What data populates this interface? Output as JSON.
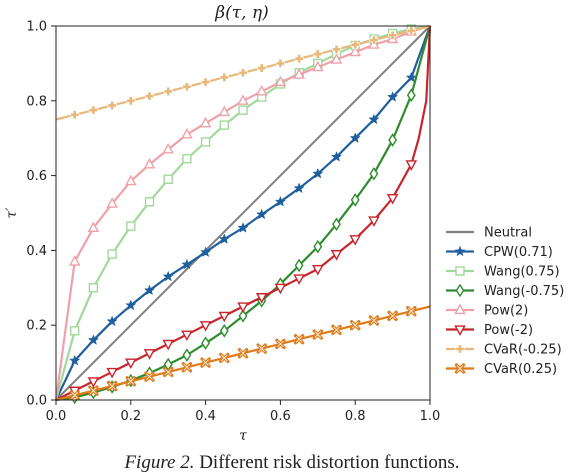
{
  "caption": {
    "head": "Figure 2.",
    "text": "Different risk distortion functions."
  },
  "chart_data": {
    "type": "line",
    "title": "β(τ, η)",
    "xlabel": "τ",
    "ylabel": "τ′",
    "xlim": [
      0,
      1
    ],
    "ylim": [
      0,
      1
    ],
    "xticks": [
      "0.0",
      "0.2",
      "0.4",
      "0.6",
      "0.8",
      "1.0"
    ],
    "yticks": [
      "0.0",
      "0.2",
      "0.4",
      "0.6",
      "0.8",
      "1.0"
    ],
    "grid": false,
    "legend_position": "right",
    "series": [
      {
        "name": "Neutral",
        "color": "#7f7f7f",
        "marker": "none",
        "points": [
          [
            0,
            0
          ],
          [
            1,
            1
          ]
        ]
      },
      {
        "name": "CPW(0.71)",
        "color": "#1f5f9e",
        "marker": "star",
        "points": [
          [
            0,
            0
          ],
          [
            0.05,
            0.105
          ],
          [
            0.1,
            0.16
          ],
          [
            0.15,
            0.21
          ],
          [
            0.2,
            0.253
          ],
          [
            0.25,
            0.293
          ],
          [
            0.3,
            0.33
          ],
          [
            0.35,
            0.362
          ],
          [
            0.4,
            0.395
          ],
          [
            0.45,
            0.43
          ],
          [
            0.5,
            0.46
          ],
          [
            0.55,
            0.496
          ],
          [
            0.6,
            0.53
          ],
          [
            0.65,
            0.566
          ],
          [
            0.7,
            0.605
          ],
          [
            0.75,
            0.65
          ],
          [
            0.8,
            0.7
          ],
          [
            0.85,
            0.75
          ],
          [
            0.9,
            0.81
          ],
          [
            0.95,
            0.862
          ],
          [
            1,
            1
          ]
        ]
      },
      {
        "name": "Wang(0.75)",
        "color": "#a1d99b",
        "marker": "square",
        "points": [
          [
            0,
            0
          ],
          [
            0.05,
            0.185
          ],
          [
            0.1,
            0.3
          ],
          [
            0.15,
            0.39
          ],
          [
            0.2,
            0.465
          ],
          [
            0.25,
            0.53
          ],
          [
            0.3,
            0.59
          ],
          [
            0.35,
            0.645
          ],
          [
            0.4,
            0.69
          ],
          [
            0.45,
            0.735
          ],
          [
            0.5,
            0.775
          ],
          [
            0.55,
            0.81
          ],
          [
            0.6,
            0.845
          ],
          [
            0.65,
            0.875
          ],
          [
            0.7,
            0.9
          ],
          [
            0.75,
            0.925
          ],
          [
            0.8,
            0.948
          ],
          [
            0.85,
            0.965
          ],
          [
            0.9,
            0.98
          ],
          [
            0.95,
            0.992
          ],
          [
            1,
            1
          ]
        ]
      },
      {
        "name": "Wang(-0.75)",
        "color": "#2e8b2e",
        "marker": "diamond",
        "points": [
          [
            0,
            0
          ],
          [
            0.05,
            0.007
          ],
          [
            0.1,
            0.02
          ],
          [
            0.15,
            0.035
          ],
          [
            0.2,
            0.052
          ],
          [
            0.25,
            0.072
          ],
          [
            0.3,
            0.095
          ],
          [
            0.35,
            0.12
          ],
          [
            0.4,
            0.152
          ],
          [
            0.45,
            0.185
          ],
          [
            0.5,
            0.225
          ],
          [
            0.55,
            0.265
          ],
          [
            0.6,
            0.31
          ],
          [
            0.65,
            0.36
          ],
          [
            0.7,
            0.41
          ],
          [
            0.75,
            0.47
          ],
          [
            0.8,
            0.535
          ],
          [
            0.85,
            0.605
          ],
          [
            0.9,
            0.695
          ],
          [
            0.95,
            0.815
          ],
          [
            1,
            1
          ]
        ]
      },
      {
        "name": "Pow(2)",
        "color": "#f0a0a8",
        "marker": "triangle-up",
        "points": [
          [
            0,
            0
          ],
          [
            0.05,
            0.37
          ],
          [
            0.1,
            0.46
          ],
          [
            0.15,
            0.525
          ],
          [
            0.2,
            0.585
          ],
          [
            0.25,
            0.63
          ],
          [
            0.3,
            0.67
          ],
          [
            0.35,
            0.71
          ],
          [
            0.4,
            0.74
          ],
          [
            0.45,
            0.77
          ],
          [
            0.5,
            0.8
          ],
          [
            0.55,
            0.825
          ],
          [
            0.6,
            0.85
          ],
          [
            0.65,
            0.87
          ],
          [
            0.7,
            0.89
          ],
          [
            0.75,
            0.91
          ],
          [
            0.8,
            0.93
          ],
          [
            0.85,
            0.95
          ],
          [
            0.9,
            0.965
          ],
          [
            0.95,
            0.985
          ],
          [
            1,
            1
          ]
        ]
      },
      {
        "name": "Pow(-2)",
        "color": "#c8242b",
        "marker": "triangle-down",
        "points": [
          [
            0,
            0
          ],
          [
            0.05,
            0.025
          ],
          [
            0.1,
            0.05
          ],
          [
            0.15,
            0.075
          ],
          [
            0.2,
            0.1
          ],
          [
            0.25,
            0.125
          ],
          [
            0.3,
            0.15
          ],
          [
            0.35,
            0.175
          ],
          [
            0.4,
            0.2
          ],
          [
            0.45,
            0.225
          ],
          [
            0.5,
            0.25
          ],
          [
            0.55,
            0.275
          ],
          [
            0.6,
            0.3
          ],
          [
            0.65,
            0.325
          ],
          [
            0.7,
            0.35
          ],
          [
            0.75,
            0.39
          ],
          [
            0.8,
            0.43
          ],
          [
            0.85,
            0.48
          ],
          [
            0.9,
            0.54
          ],
          [
            0.95,
            0.63
          ],
          [
            0.97,
            0.7
          ],
          [
            0.99,
            0.8
          ],
          [
            1,
            1
          ]
        ]
      },
      {
        "name": "CVaR(-0.25)",
        "color": "#e8b87a",
        "marker": "plus",
        "points": [
          [
            0,
            0.75
          ],
          [
            0.05,
            0.7625
          ],
          [
            0.1,
            0.775
          ],
          [
            0.15,
            0.7875
          ],
          [
            0.2,
            0.8
          ],
          [
            0.25,
            0.8125
          ],
          [
            0.3,
            0.825
          ],
          [
            0.35,
            0.8375
          ],
          [
            0.4,
            0.85
          ],
          [
            0.45,
            0.8625
          ],
          [
            0.5,
            0.875
          ],
          [
            0.55,
            0.8875
          ],
          [
            0.6,
            0.9
          ],
          [
            0.65,
            0.9125
          ],
          [
            0.7,
            0.925
          ],
          [
            0.75,
            0.9375
          ],
          [
            0.8,
            0.95
          ],
          [
            0.85,
            0.9625
          ],
          [
            0.9,
            0.975
          ],
          [
            0.95,
            0.9875
          ],
          [
            1,
            1
          ]
        ]
      },
      {
        "name": "CVaR(0.25)",
        "color": "#e07b1a",
        "marker": "x",
        "points": [
          [
            0,
            0
          ],
          [
            0.05,
            0.0125
          ],
          [
            0.1,
            0.025
          ],
          [
            0.15,
            0.0375
          ],
          [
            0.2,
            0.05
          ],
          [
            0.25,
            0.0625
          ],
          [
            0.3,
            0.075
          ],
          [
            0.35,
            0.0875
          ],
          [
            0.4,
            0.1
          ],
          [
            0.45,
            0.1125
          ],
          [
            0.5,
            0.125
          ],
          [
            0.55,
            0.1375
          ],
          [
            0.6,
            0.15
          ],
          [
            0.65,
            0.1625
          ],
          [
            0.7,
            0.175
          ],
          [
            0.75,
            0.1875
          ],
          [
            0.8,
            0.2
          ],
          [
            0.85,
            0.2125
          ],
          [
            0.9,
            0.225
          ],
          [
            0.95,
            0.2375
          ],
          [
            1,
            0.25
          ]
        ]
      }
    ]
  }
}
